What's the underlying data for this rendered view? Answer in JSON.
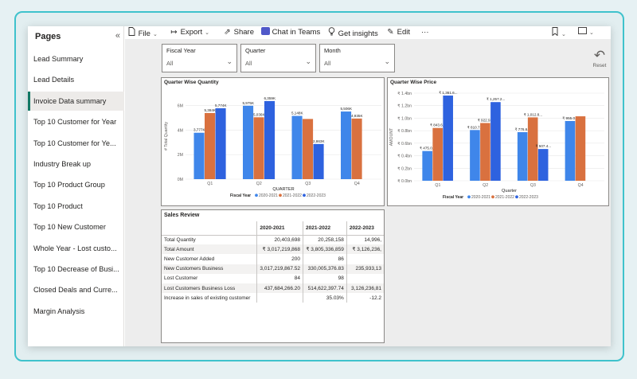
{
  "sidebar": {
    "title": "Pages",
    "collapse_glyph": "«",
    "items": [
      {
        "label": "Lead Summary"
      },
      {
        "label": "Lead Details"
      },
      {
        "label": "Invoice Data summary",
        "active": true
      },
      {
        "label": "Top 10 Customer for Year"
      },
      {
        "label": "Top 10 Customer for Ye..."
      },
      {
        "label": "Industry Break up"
      },
      {
        "label": "Top 10 Product Group"
      },
      {
        "label": "Top 10 Product"
      },
      {
        "label": "Top 10 New Customer"
      },
      {
        "label": "Whole Year - Lost custo..."
      },
      {
        "label": "Top 10 Decrease of Busi..."
      },
      {
        "label": "Closed Deals and Curre..."
      },
      {
        "label": "Margin Analysis"
      }
    ]
  },
  "toolbar": {
    "file": "File",
    "export": "Export",
    "share": "Share",
    "chat": "Chat in Teams",
    "insights": "Get insights",
    "edit": "Edit",
    "more": "···"
  },
  "filters": [
    {
      "label": "Fiscal Year",
      "value": "All"
    },
    {
      "label": "Quarter",
      "value": "All"
    },
    {
      "label": "Month",
      "value": "All"
    }
  ],
  "reset_label": "Reset",
  "colors": {
    "series1": "#3f86ea",
    "series2": "#d9713f",
    "series3": "#2e62df",
    "accent": "#117865"
  },
  "chart_data": [
    {
      "type": "bar",
      "title": "Quarter Wise Quantity",
      "xlabel": "QUARTER",
      "ylabel": "# Total Quantity",
      "categories": [
        "Q1",
        "Q2",
        "Q3",
        "Q4"
      ],
      "yticks": [
        "0M",
        "2M",
        "4M",
        "6M"
      ],
      "ylim": [
        0,
        7000000
      ],
      "legend_title": "Fiscal Year",
      "series": [
        {
          "name": "2020-2021",
          "values": [
            3777000,
            5975000,
            5148000,
            5506000
          ],
          "labels": [
            "3,777K",
            "5,975K",
            "5,148K",
            "5,506K"
          ]
        },
        {
          "name": "2021-2022",
          "values": [
            5384000,
            5036000,
            4900000,
            4935000
          ],
          "labels": [
            "5,384K",
            "5,036K",
            "",
            "4,935K"
          ]
        },
        {
          "name": "2022-2023",
          "values": [
            5774000,
            6359000,
            2863000,
            null
          ],
          "labels": [
            "5,774K",
            "6,359K",
            "2,863K",
            ""
          ]
        }
      ]
    },
    {
      "type": "bar",
      "title": "Quarter Wise Price",
      "xlabel": "Quarter",
      "ylabel": "AMOUNT",
      "categories": [
        "Q1",
        "Q2",
        "Q3",
        "Q4"
      ],
      "yticks": [
        "₹ 0.0bn",
        "₹ 0.2bn",
        "₹ 0.4bn",
        "₹ 0.6bn",
        "₹ 0.8bn",
        "₹ 1.0bn",
        "₹ 1.2bn",
        "₹ 1.4bn"
      ],
      "ylim": [
        0,
        1.4
      ],
      "legend_title": "Fiscal Year",
      "series": [
        {
          "name": "2020-2021",
          "values": [
            0.475,
            0.8107,
            0.7766,
            0.955
          ],
          "labels": [
            "₹ 475.0...",
            "₹ 810.7...",
            "₹ 776.6...",
            "₹ 955.0..."
          ]
        },
        {
          "name": "2021-2022",
          "values": [
            0.8436,
            0.9229,
            1.0128,
            1.03
          ],
          "labels": [
            "₹ 843.6...",
            "₹ 922.9...",
            "₹ 1,012.8...",
            ""
          ]
        },
        {
          "name": "2022-2023",
          "values": [
            1.3616,
            1.2572,
            0.5074,
            null
          ],
          "labels": [
            "₹ 1,361.6...",
            "₹ 1,257.2...",
            "₹ 507.4...",
            ""
          ]
        }
      ]
    }
  ],
  "sales_review": {
    "title": "Sales Review",
    "columns": [
      "",
      "2020-2021",
      "2021-2022",
      "2022-2023"
    ],
    "rows": [
      [
        "Total Quantity",
        "20,403,698",
        "20,258,158",
        "14,996,"
      ],
      [
        "Total Amount",
        "₹ 3,017,219,868",
        "₹ 3,805,336,859",
        "₹ 3,126,236,"
      ],
      [
        "New Customer Added",
        "200",
        "86",
        ""
      ],
      [
        "New Customers Business",
        "3,017,219,867.52",
        "330,005,376.83",
        "235,933,13"
      ],
      [
        "Lost Customer",
        "84",
        "98",
        ""
      ],
      [
        "Lost Customers Business Loss",
        "437,684,266.20",
        "514,622,397.74",
        "3,126,236,81"
      ],
      [
        "Increase in sales of existing customer",
        "",
        "35.03%",
        "-12.2"
      ]
    ]
  }
}
